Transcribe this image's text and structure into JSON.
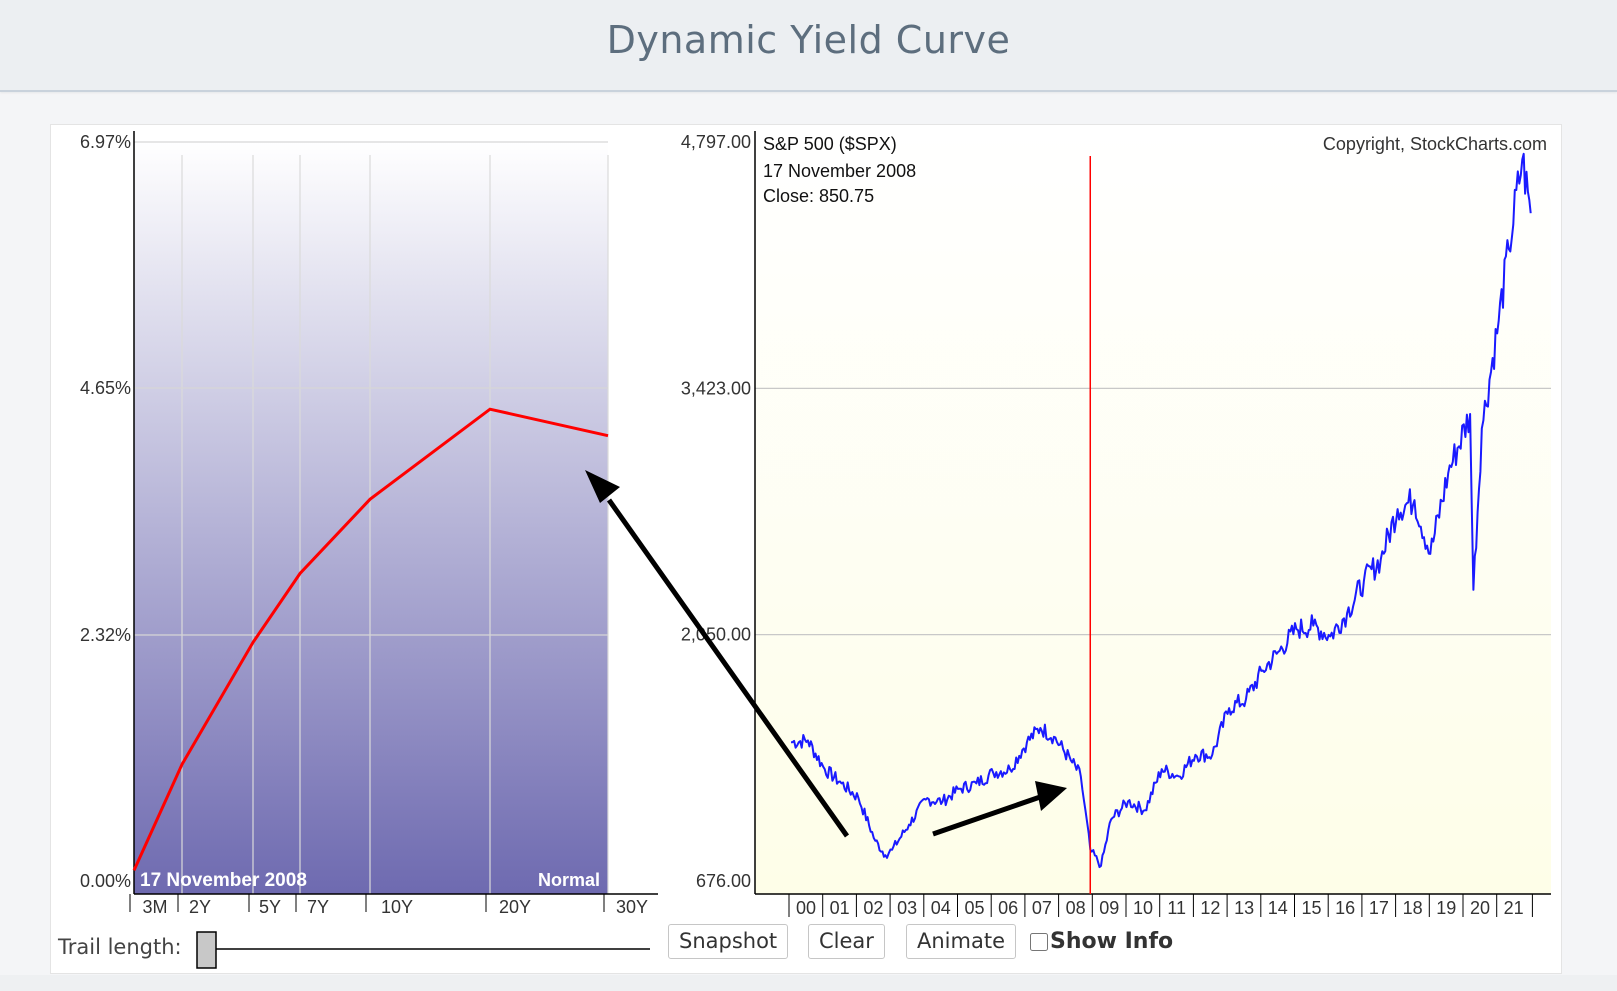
{
  "page": {
    "title": "Dynamic Yield Curve"
  },
  "yield_chart": {
    "y_ticks": [
      "6.97%",
      "4.65%",
      "2.32%",
      "0.00%"
    ],
    "maturities": [
      "3M",
      "2Y",
      "5Y",
      "7Y",
      "10Y",
      "20Y",
      "30Y"
    ],
    "date_label": "17  November 2008",
    "curve_label": "Normal"
  },
  "sp_chart": {
    "title": "S&P 500 ($SPX)",
    "copyright": "Copyright, StockCharts.com",
    "date_label": "17  November 2008",
    "close_label": "Close: 850.75",
    "y_ticks": [
      "4,797.00",
      "3,423.00",
      "2,050.00",
      "676.00"
    ],
    "x_ticks": [
      "00",
      "01",
      "02",
      "03",
      "04",
      "05",
      "06",
      "07",
      "08",
      "09",
      "10",
      "11",
      "12",
      "13",
      "14",
      "15",
      "16",
      "17",
      "18",
      "19",
      "20",
      "21"
    ]
  },
  "controls": {
    "trail_label": "Trail length:",
    "snapshot": "Snapshot",
    "clear": "Clear",
    "animate": "Animate",
    "show_info": "Show Info"
  },
  "colors": {
    "yield_line": "#ff0000",
    "sp_line": "#1a1aff",
    "marker": "#ff0000",
    "sp_background": "#fefee8",
    "yield_gradient_top": "#ffffff",
    "yield_gradient_bottom": "#6e6ab0"
  },
  "chart_data": [
    {
      "type": "line",
      "maturities": [
        "3M",
        "2Y",
        "5Y",
        "7Y",
        "10Y",
        "20Y",
        "30Y"
      ],
      "values": [
        0.1,
        1.1,
        2.25,
        2.9,
        3.6,
        4.45,
        4.2
      ],
      "ylim": [
        0,
        6.97
      ],
      "y_tick_values": [
        0,
        2.32,
        4.65,
        6.97
      ],
      "date": "17 November 2008",
      "curve_label": "Normal",
      "grid": true
    },
    {
      "type": "line",
      "name": "S&P 500 ($SPX)",
      "x": [
        2000,
        2000.5,
        2001,
        2001.5,
        2002,
        2002.5,
        2002.8,
        2003,
        2003.5,
        2004,
        2004.5,
        2005,
        2005.5,
        2006,
        2006.5,
        2007,
        2007.4,
        2007.8,
        2008.3,
        2008.6,
        2008.88,
        2009.2,
        2009.5,
        2010,
        2010.5,
        2011,
        2011.5,
        2012,
        2012.5,
        2013,
        2013.5,
        2014,
        2014.5,
        2015,
        2015.5,
        2016,
        2016.5,
        2017,
        2017.5,
        2018,
        2018.5,
        2018.97,
        2019.5,
        2020.15,
        2020.25,
        2020.5,
        2021,
        2021.3,
        2021.7,
        2021.95
      ],
      "y": [
        1450,
        1460,
        1300,
        1220,
        1140,
        900,
        820,
        850,
        990,
        1130,
        1120,
        1190,
        1220,
        1280,
        1300,
        1450,
        1530,
        1480,
        1350,
        1260,
        850.75,
        760,
        1020,
        1120,
        1070,
        1300,
        1260,
        1380,
        1380,
        1640,
        1690,
        1850,
        1960,
        2080,
        2100,
        2040,
        2170,
        2350,
        2470,
        2750,
        2800,
        2500,
        2950,
        3280,
        2300,
        3200,
        3800,
        4200,
        4700,
        4400
      ],
      "ylim": [
        676,
        4797
      ],
      "y_tick_values": [
        676,
        2050,
        3423,
        4797
      ],
      "x_ticks": [
        "00",
        "01",
        "02",
        "03",
        "04",
        "05",
        "06",
        "07",
        "08",
        "09",
        "10",
        "11",
        "12",
        "13",
        "14",
        "15",
        "16",
        "17",
        "18",
        "19",
        "20",
        "21"
      ],
      "marker_x": 2008.88,
      "marker_close": 850.75,
      "grid": true
    }
  ]
}
